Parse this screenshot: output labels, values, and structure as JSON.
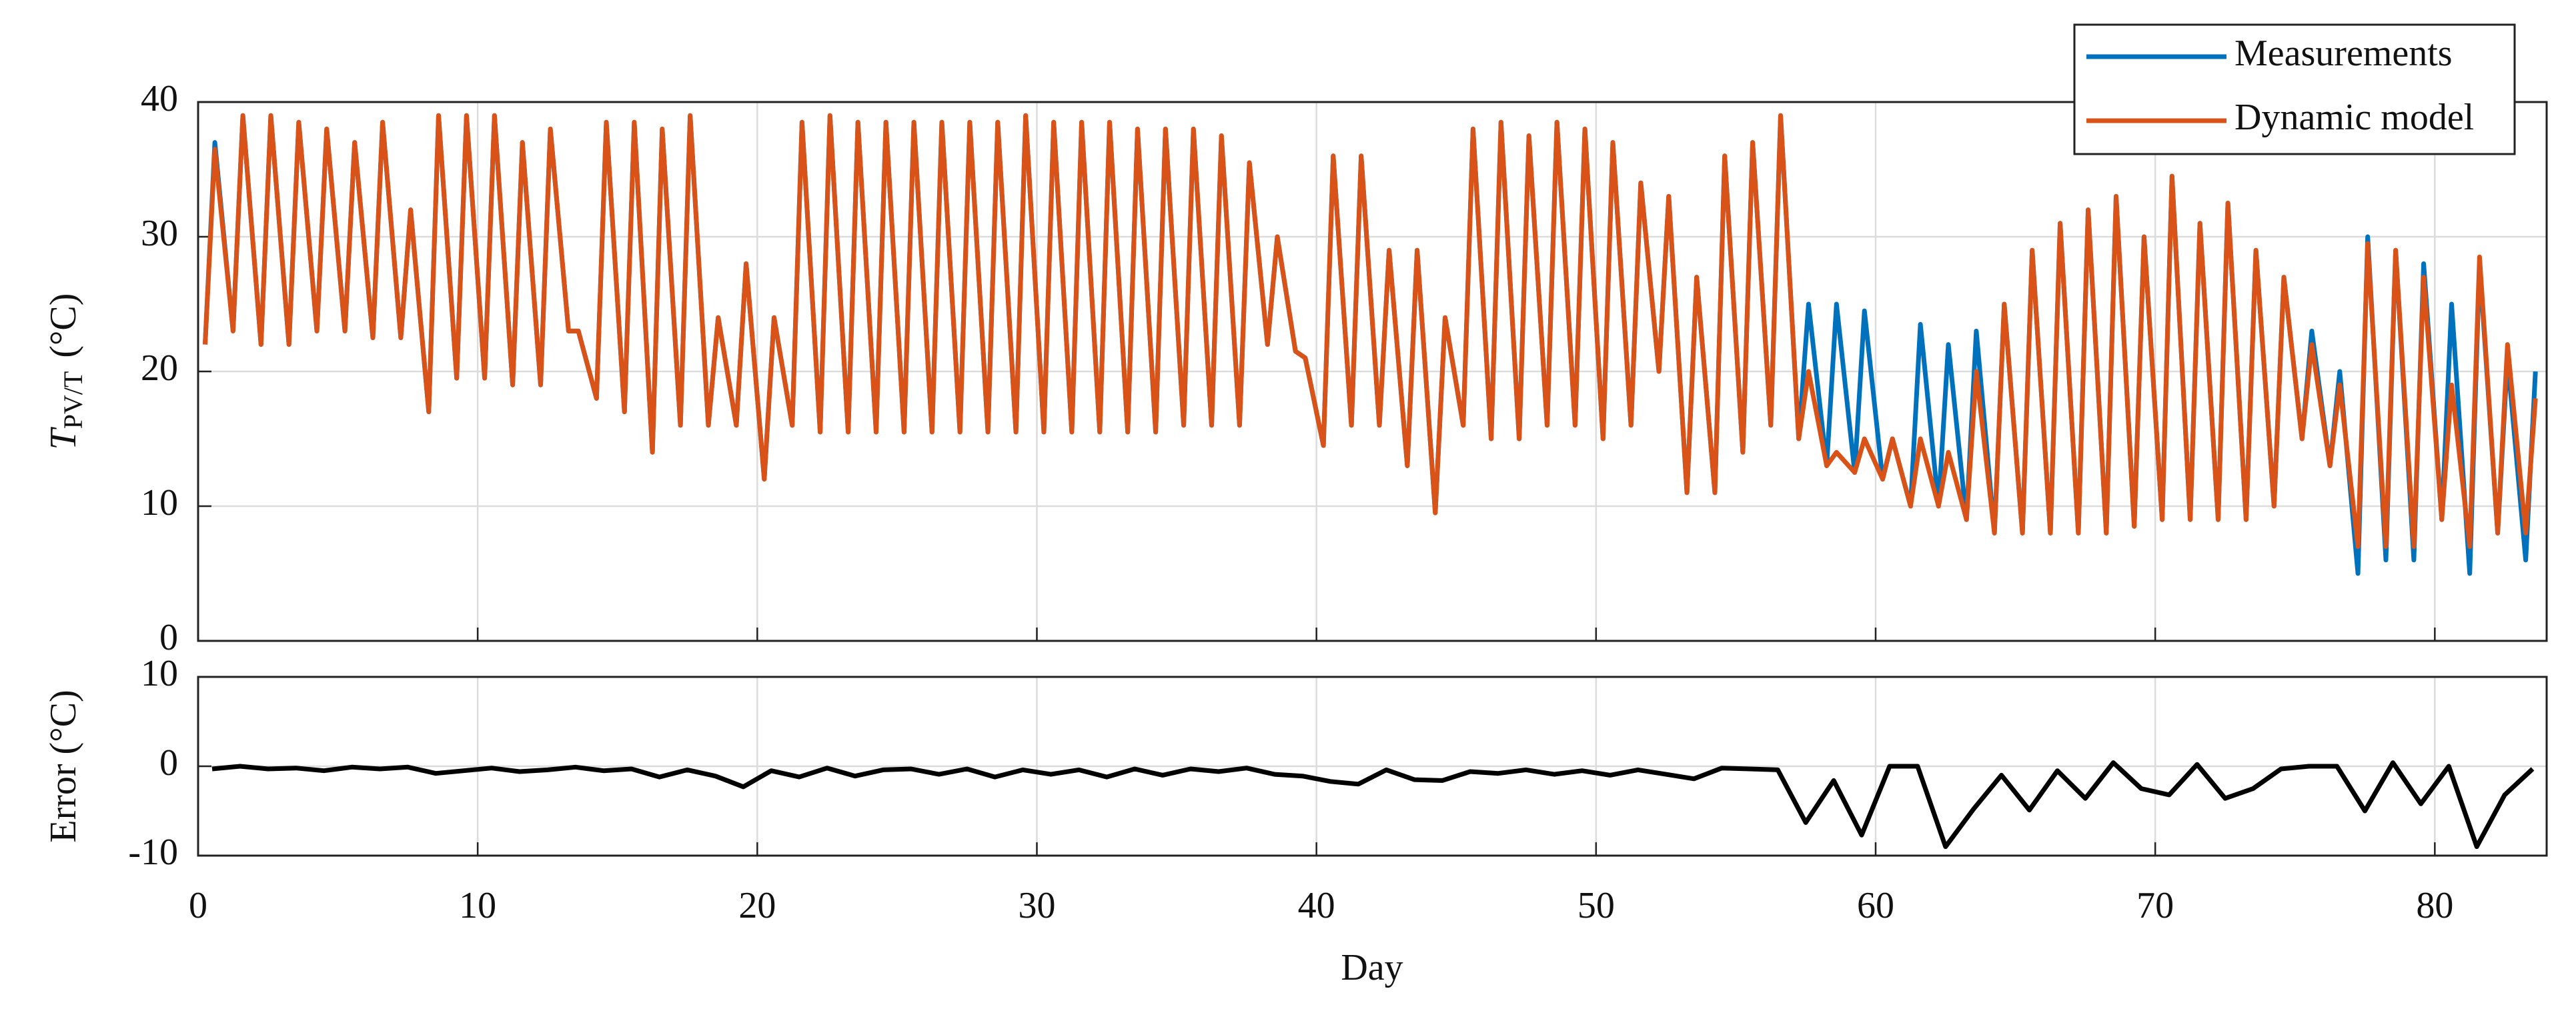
{
  "chart_data": [
    {
      "type": "line",
      "y_label": {
        "symbol": "T",
        "subscript": "PV/T",
        "unit": "(°C)"
      },
      "legend": "northeast",
      "grid": true,
      "xlim": [
        0,
        84
      ],
      "xticks": [
        0,
        10,
        20,
        30,
        40,
        50,
        60,
        70,
        80
      ],
      "ylim": [
        0,
        40
      ],
      "yticks": [
        0,
        10,
        20,
        30,
        40
      ],
      "x": [
        0.25,
        0.6,
        1.25,
        1.6,
        2.25,
        2.6,
        3.25,
        3.6,
        4.25,
        4.6,
        5.25,
        5.6,
        6.25,
        6.6,
        7.25,
        7.6,
        8.25,
        8.6,
        9.25,
        9.6,
        10.25,
        10.6,
        11.25,
        11.6,
        12.25,
        12.6,
        13.25,
        13.6,
        14.25,
        14.6,
        15.25,
        15.6,
        16.25,
        16.6,
        17.25,
        17.6,
        18.25,
        18.6,
        19.25,
        19.6,
        20.25,
        20.6,
        21.25,
        21.6,
        22.25,
        22.6,
        23.25,
        23.6,
        24.25,
        24.6,
        25.25,
        25.6,
        26.25,
        26.6,
        27.25,
        27.6,
        28.25,
        28.6,
        29.25,
        29.6,
        30.25,
        30.6,
        31.25,
        31.6,
        32.25,
        32.6,
        33.25,
        33.6,
        34.25,
        34.6,
        35.25,
        35.6,
        36.25,
        36.6,
        37.25,
        37.6,
        38.25,
        38.6,
        39.25,
        39.6,
        40.25,
        40.6,
        41.25,
        41.6,
        42.25,
        42.6,
        43.25,
        43.6,
        44.25,
        44.6,
        45.25,
        45.6,
        46.25,
        46.6,
        47.25,
        47.6,
        48.25,
        48.6,
        49.25,
        49.6,
        50.25,
        50.6,
        51.25,
        51.6,
        52.25,
        52.6,
        53.25,
        53.6,
        54.25,
        54.6,
        55.25,
        55.6,
        56.25,
        56.6,
        57.25,
        57.6,
        58.25,
        58.6,
        59.25,
        59.6,
        60.25,
        60.6,
        61.25,
        61.6,
        62.25,
        62.6,
        63.25,
        63.6,
        64.25,
        64.6,
        65.25,
        65.6,
        66.25,
        66.6,
        67.25,
        67.6,
        68.25,
        68.6,
        69.25,
        69.6,
        70.25,
        70.6,
        71.25,
        71.6,
        72.25,
        72.6,
        73.25,
        73.6,
        74.25,
        74.6,
        75.25,
        75.6,
        76.25,
        76.6,
        77.25,
        77.6,
        78.25,
        78.6,
        79.25,
        79.6,
        80.25,
        80.6,
        81.25,
        81.6,
        82.25,
        82.6,
        83.25,
        83.6
      ],
      "series": [
        {
          "name": "Measurements",
          "color": "#0072bd",
          "values": [
            22,
            37,
            23,
            39,
            22,
            39,
            22,
            38.5,
            23,
            38,
            23,
            37,
            22.5,
            38.5,
            22.5,
            32,
            17,
            39,
            19.5,
            39,
            19.5,
            39,
            19,
            37,
            19,
            38,
            23,
            23,
            18,
            38.5,
            17,
            38.5,
            14,
            38,
            16,
            39,
            16,
            24,
            16,
            28,
            12,
            24,
            16,
            38.5,
            15.5,
            39,
            15.5,
            38.5,
            15.5,
            38.5,
            15.5,
            38.5,
            15.5,
            38.5,
            15.5,
            38.5,
            15.5,
            38.5,
            15.5,
            39,
            15.5,
            38.5,
            15.5,
            38.5,
            15.5,
            38.5,
            15.5,
            38,
            15.5,
            38,
            16,
            38,
            16,
            37.5,
            16,
            35.5,
            22,
            30,
            21.5,
            21,
            14.5,
            36,
            16,
            36,
            16,
            29,
            13,
            29,
            9.5,
            24,
            16,
            38,
            15,
            38.5,
            15,
            37.5,
            16,
            38.5,
            16,
            38,
            15,
            37,
            16,
            34,
            20,
            33,
            11,
            27,
            11,
            36,
            14,
            37,
            16,
            39,
            15,
            25,
            13,
            25,
            12.5,
            24.5,
            12,
            15,
            10,
            23.5,
            10,
            22,
            9,
            23,
            8,
            25,
            8,
            29,
            8,
            31,
            8,
            32,
            8,
            33,
            8.5,
            30,
            9,
            34.5,
            9,
            31,
            9,
            32.5,
            9,
            29,
            10,
            27,
            15,
            23,
            13,
            20,
            5,
            30,
            6,
            29,
            6,
            28,
            9,
            25,
            5,
            28,
            8,
            21,
            6,
            20
          ]
        },
        {
          "name": "Dynamic model",
          "color": "#d95319",
          "values": [
            22,
            36.5,
            23,
            39,
            22,
            39,
            22,
            38.5,
            23,
            38,
            23,
            37,
            22.5,
            38.5,
            22.5,
            32,
            17,
            39,
            19.5,
            39,
            19.5,
            39,
            19,
            37,
            19,
            38,
            23,
            23,
            18,
            38.5,
            17,
            38.5,
            14,
            38,
            16,
            39,
            16,
            24,
            16,
            28,
            12,
            24,
            16,
            38.5,
            15.5,
            39,
            15.5,
            38.5,
            15.5,
            38.5,
            15.5,
            38.5,
            15.5,
            38.5,
            15.5,
            38.5,
            15.5,
            38.5,
            15.5,
            39,
            15.5,
            38.5,
            15.5,
            38.5,
            15.5,
            38.5,
            15.5,
            38,
            15.5,
            38,
            16,
            38,
            16,
            37.5,
            16,
            35.5,
            22,
            30,
            21.5,
            21,
            14.5,
            36,
            16,
            36,
            16,
            29,
            13,
            29,
            9.5,
            24,
            16,
            38,
            15,
            38.5,
            15,
            37.5,
            16,
            38.5,
            16,
            38,
            15,
            37,
            16,
            34,
            20,
            33,
            11,
            27,
            11,
            36,
            14,
            37,
            16,
            39,
            15,
            20,
            13,
            14,
            12.5,
            15,
            12,
            15,
            10,
            15,
            10,
            14,
            9,
            20,
            8,
            25,
            8,
            29,
            8,
            31,
            8,
            32,
            8,
            33,
            8.5,
            30,
            9,
            34.5,
            9,
            31,
            9,
            32.5,
            9,
            29,
            10,
            27,
            15,
            22,
            13,
            19,
            7,
            29.5,
            7,
            29,
            7,
            27,
            9,
            19,
            7,
            28.5,
            8,
            22,
            8,
            18
          ]
        }
      ]
    },
    {
      "type": "line",
      "y_label": "Error (°C)",
      "x_label": "Day",
      "grid": true,
      "xlim": [
        0,
        84
      ],
      "xticks": [
        0,
        10,
        20,
        30,
        40,
        50,
        60,
        70,
        80
      ],
      "ylim": [
        -10,
        10
      ],
      "yticks": [
        -10,
        0,
        10
      ],
      "color": "#000000",
      "x": [
        0.5,
        1.5,
        2.5,
        3.5,
        4.5,
        5.5,
        6.5,
        7.5,
        8.5,
        9.5,
        10.5,
        11.5,
        12.5,
        13.5,
        14.5,
        15.5,
        16.5,
        17.5,
        18.5,
        19.5,
        20.5,
        21.5,
        22.5,
        23.5,
        24.5,
        25.5,
        26.5,
        27.5,
        28.5,
        29.5,
        30.5,
        31.5,
        32.5,
        33.5,
        34.5,
        35.5,
        36.5,
        37.5,
        38.5,
        39.5,
        40.5,
        41.5,
        42.5,
        43.5,
        44.5,
        45.5,
        46.5,
        47.5,
        48.5,
        49.5,
        50.5,
        51.5,
        52.5,
        53.5,
        54.5,
        55.5,
        56.5,
        57.5,
        58.5,
        59.5,
        60.5,
        61.5,
        62.5,
        63.5,
        64.5,
        65.5,
        66.5,
        67.5,
        68.5,
        69.5,
        70.5,
        71.5,
        72.5,
        73.5,
        74.5,
        75.5,
        76.5,
        77.5,
        78.5,
        79.5,
        80.5,
        81.5,
        82.5,
        83.5
      ],
      "values": [
        -0.3,
        0,
        -0.3,
        -0.2,
        -0.5,
        -0.1,
        -0.3,
        -0.1,
        -0.8,
        -0.5,
        -0.2,
        -0.6,
        -0.4,
        -0.1,
        -0.5,
        -0.3,
        -1.2,
        -0.4,
        -1.1,
        -2.3,
        -0.5,
        -1.2,
        -0.2,
        -1.1,
        -0.4,
        -0.3,
        -0.9,
        -0.3,
        -1.2,
        -0.4,
        -0.9,
        -0.4,
        -1.2,
        -0.3,
        -1,
        -0.3,
        -0.6,
        -0.2,
        -0.9,
        -1.1,
        -1.7,
        -2,
        -0.4,
        -1.5,
        -1.6,
        -0.6,
        -0.8,
        -0.4,
        -0.9,
        -0.5,
        -1,
        -0.4,
        -0.9,
        -1.4,
        -0.2,
        -0.3,
        -0.4,
        -6.3,
        -1.6,
        -7.7,
        0,
        0,
        -9,
        -4.8,
        -1,
        -4.9,
        -0.5,
        -3.6,
        0.4,
        -2.5,
        -3.2,
        0.2,
        -3.6,
        -2.5,
        -0.3,
        0,
        0,
        -5,
        0.4,
        -4.2,
        0,
        -9,
        -3.2,
        -0.3
      ]
    }
  ]
}
